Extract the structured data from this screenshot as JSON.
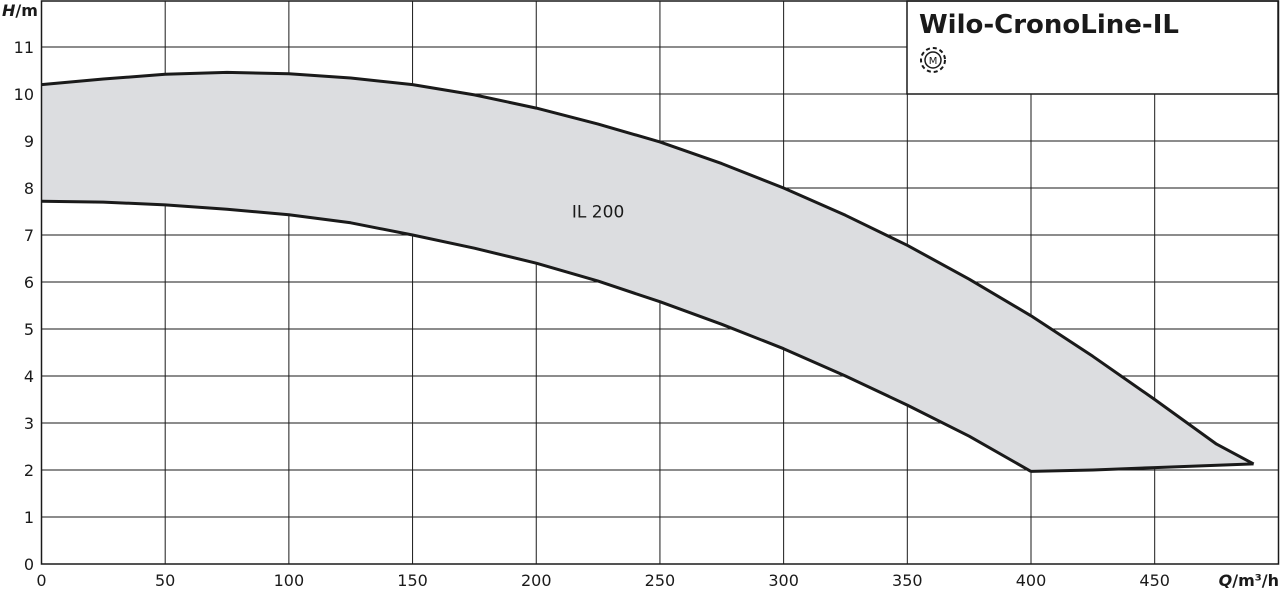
{
  "chart_data": {
    "type": "area",
    "title": "Wilo-CronoLine-IL",
    "title_icon": "motor-symbol-icon",
    "xlabel": {
      "var": "Q",
      "unit": "/m³/h"
    },
    "ylabel": {
      "var": "H",
      "unit": "/m"
    },
    "xlim": [
      0,
      500
    ],
    "ylim": [
      0,
      12
    ],
    "x_ticks": [
      "0",
      "50",
      "100",
      "150",
      "200",
      "250",
      "300",
      "350",
      "400",
      "450"
    ],
    "y_ticks": [
      "0",
      "1",
      "2",
      "3",
      "4",
      "5",
      "6",
      "7",
      "8",
      "9",
      "10",
      "11"
    ],
    "grid": true,
    "colors": {
      "fill": "#dcdde0",
      "line": "#1a1a1a",
      "grid": "#1a1a1a"
    },
    "series": [
      {
        "name": "IL 200",
        "label_pos": {
          "x": 225,
          "y": 7.5
        },
        "upper": [
          [
            0,
            10.2
          ],
          [
            25,
            10.32
          ],
          [
            50,
            10.42
          ],
          [
            75,
            10.46
          ],
          [
            100,
            10.43
          ],
          [
            125,
            10.34
          ],
          [
            150,
            10.2
          ],
          [
            175,
            9.98
          ],
          [
            200,
            9.7
          ],
          [
            225,
            9.36
          ],
          [
            250,
            8.98
          ],
          [
            275,
            8.52
          ],
          [
            300,
            8.0
          ],
          [
            325,
            7.42
          ],
          [
            350,
            6.78
          ],
          [
            375,
            6.06
          ],
          [
            400,
            5.28
          ],
          [
            425,
            4.42
          ],
          [
            450,
            3.5
          ],
          [
            475,
            2.55
          ],
          [
            490,
            2.13
          ]
        ],
        "lower": [
          [
            0,
            7.72
          ],
          [
            25,
            7.7
          ],
          [
            50,
            7.64
          ],
          [
            75,
            7.55
          ],
          [
            100,
            7.43
          ],
          [
            125,
            7.26
          ],
          [
            150,
            7.0
          ],
          [
            175,
            6.72
          ],
          [
            200,
            6.4
          ],
          [
            225,
            6.02
          ],
          [
            250,
            5.58
          ],
          [
            275,
            5.1
          ],
          [
            300,
            4.58
          ],
          [
            325,
            4.0
          ],
          [
            350,
            3.38
          ],
          [
            375,
            2.72
          ],
          [
            400,
            1.97
          ]
        ],
        "bottom_edge": [
          [
            400,
            1.97
          ],
          [
            425,
            2.0
          ],
          [
            450,
            2.05
          ],
          [
            490,
            2.13
          ]
        ]
      }
    ]
  }
}
